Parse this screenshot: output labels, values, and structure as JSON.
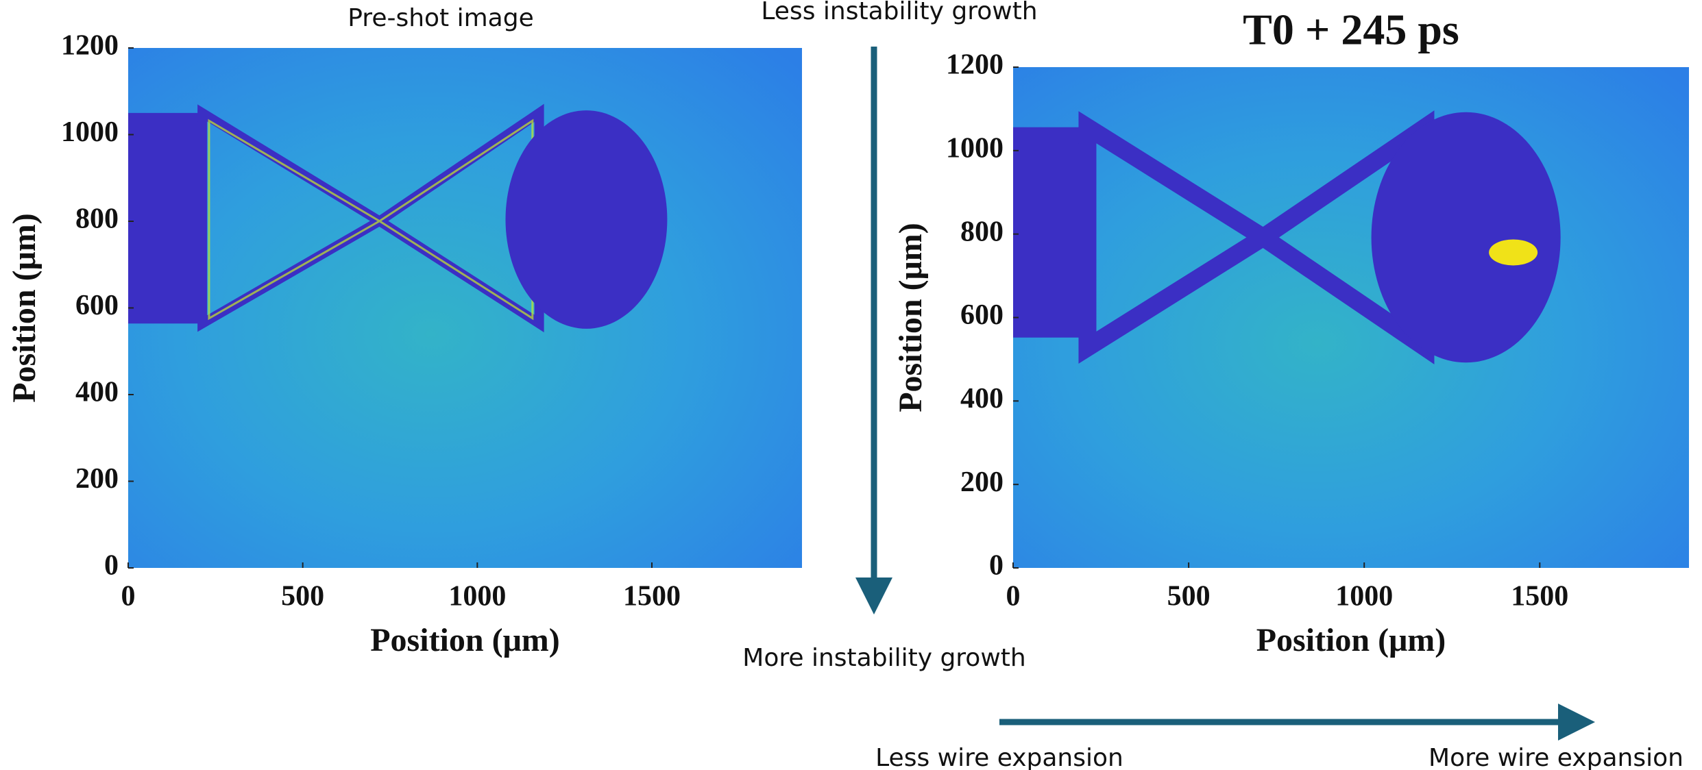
{
  "chart_data": [
    {
      "type": "image",
      "title": "Pre-shot image",
      "x_label": "Position (μm)",
      "y_label": "Position (μm)",
      "xlim": [
        0,
        1930
      ],
      "ylim": [
        0,
        1200
      ],
      "xticks": [
        0,
        500,
        1000,
        1500
      ],
      "yticks": [
        0,
        200,
        400,
        600,
        800,
        1000,
        1200
      ]
    },
    {
      "type": "image",
      "title": "T0 + 245 ps",
      "x_label": "Position (μm)",
      "y_label": "Position (μm)",
      "xlim": [
        0,
        1925
      ],
      "ylim": [
        0,
        1200
      ],
      "xticks": [
        0,
        500,
        1000,
        1500
      ],
      "yticks": [
        0,
        200,
        400,
        600,
        800,
        1000,
        1200
      ]
    }
  ],
  "annotations": [
    "Less instability growth",
    "More instability growth",
    "Less wire expansion",
    "More wire expansion"
  ]
}
